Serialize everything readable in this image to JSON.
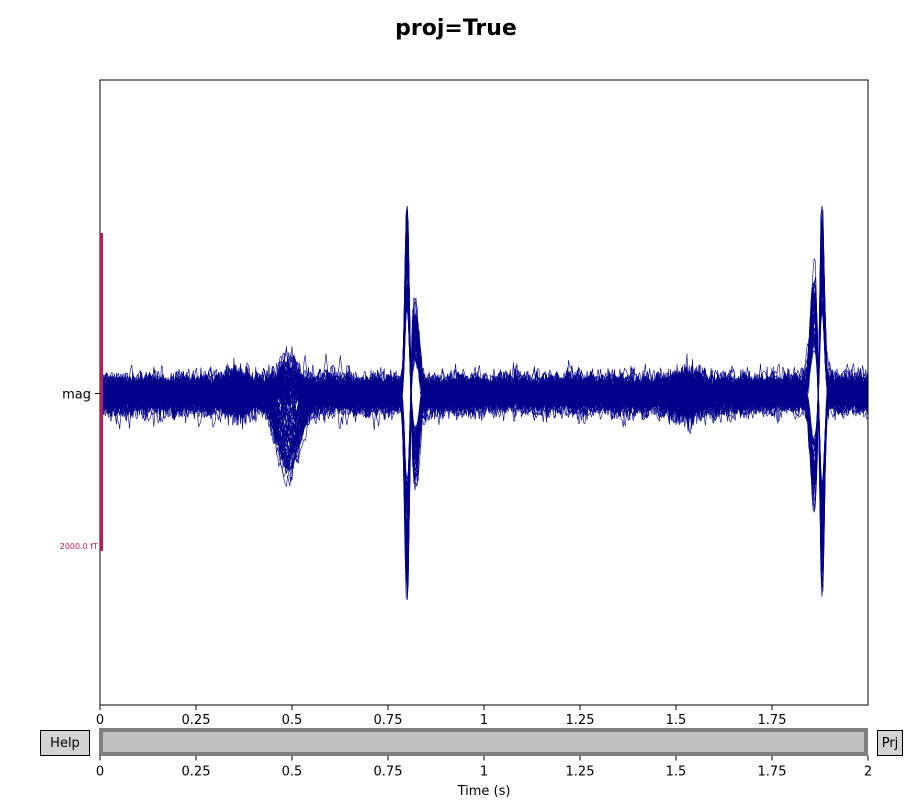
{
  "title": "proj=True",
  "buttons": {
    "help": "Help",
    "proj": "Prj"
  },
  "colors": {
    "trace": "#00008b",
    "scale_bar": "#c2185b",
    "scrollbar_bg": "#c0c0c0",
    "scrollbar_border": "#808080"
  },
  "chart_data": {
    "type": "line",
    "title": "proj=True",
    "channel_types": [
      "mag"
    ],
    "xlim": [
      0,
      2
    ],
    "x_ticks": [
      "0",
      "0.25",
      "0.5",
      "0.75",
      "1",
      "1.25",
      "1.5",
      "1.75"
    ],
    "y_ticks": [
      "mag"
    ],
    "scale_bar_label": "2000.0 fT",
    "trace_color": "#00008b",
    "n_traces": 102,
    "events_s": [
      0.49,
      0.8,
      1.88
    ],
    "grid": false
  },
  "scrollbar": {
    "xlim": [
      0,
      2
    ],
    "x_ticks": [
      "0",
      "0.25",
      "0.5",
      "0.75",
      "1",
      "1.25",
      "1.5",
      "1.75",
      "2"
    ],
    "xlabel": "Time (s)",
    "view_range": [
      0,
      2
    ]
  }
}
